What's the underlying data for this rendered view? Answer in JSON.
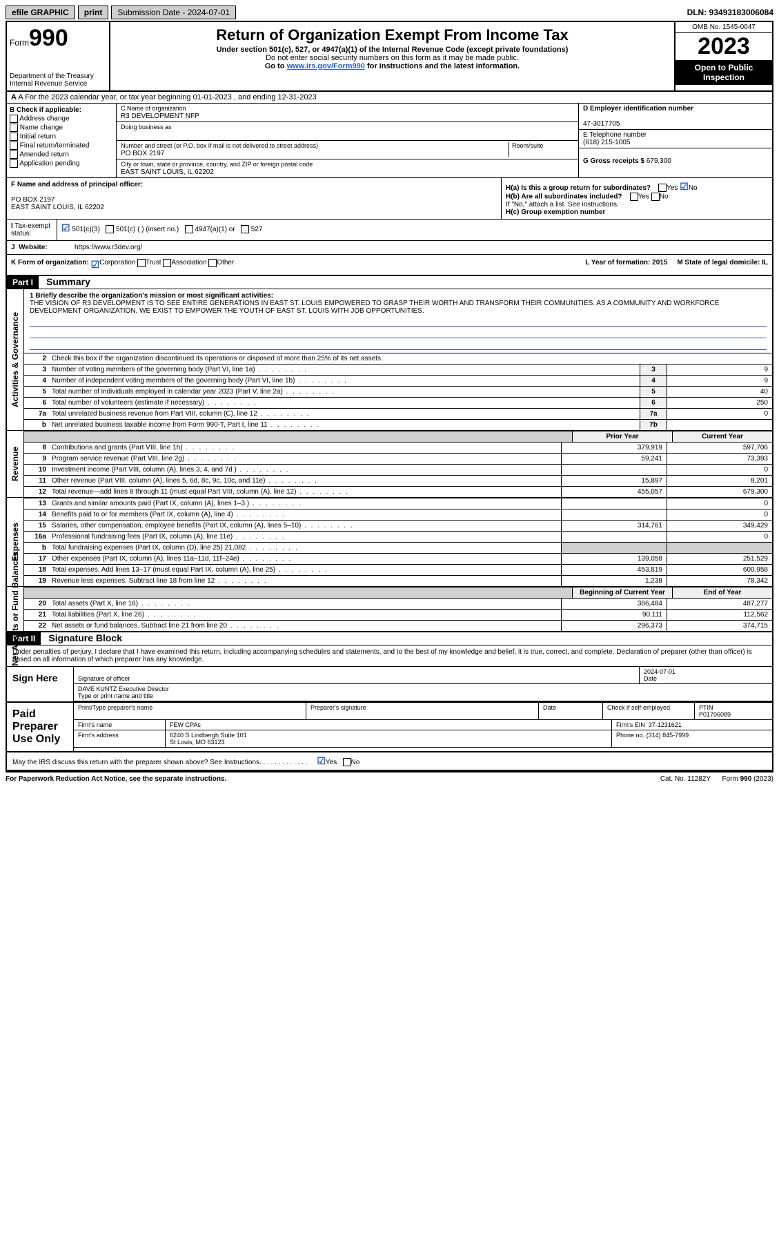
{
  "topbar": {
    "efile": "efile GRAPHIC",
    "print": "print",
    "submission": "Submission Date - 2024-07-01",
    "dln": "DLN: 93493183006084"
  },
  "header": {
    "form_label": "Form",
    "form_num": "990",
    "dept": "Department of the Treasury",
    "irs": "Internal Revenue Service",
    "title": "Return of Organization Exempt From Income Tax",
    "sub1": "Under section 501(c), 527, or 4947(a)(1) of the Internal Revenue Code (except private foundations)",
    "sub2": "Do not enter social security numbers on this form as it may be made public.",
    "sub3": "Go to ",
    "sub3_link": "www.irs.gov/Form990",
    "sub3_after": " for instructions and the latest information.",
    "omb": "OMB No. 1545-0047",
    "year": "2023",
    "open": "Open to Public Inspection"
  },
  "rowA": "A For the 2023 calendar year, or tax year beginning 01-01-2023   , and ending 12-31-2023",
  "colB": {
    "title": "B Check if applicable:",
    "opts": [
      "Address change",
      "Name change",
      "Initial return",
      "Final return/terminated",
      "Amended return",
      "Application pending"
    ]
  },
  "colC": {
    "name_lbl": "C Name of organization",
    "name": "R3 DEVELOPMENT NFP",
    "dba_lbl": "Doing business as",
    "addr_lbl": "Number and street (or P.O. box if mail is not delivered to street address)",
    "room_lbl": "Room/suite",
    "addr": "PO BOX 2197",
    "city_lbl": "City or town, state or province, country, and ZIP or foreign postal code",
    "city": "EAST SAINT LOUIS, IL  62202"
  },
  "colD": {
    "ein_lbl": "D Employer identification number",
    "ein": "47-3017705",
    "tel_lbl": "E Telephone number",
    "tel": "(618) 215-1005",
    "gross_lbl": "G Gross receipts $",
    "gross": "679,300"
  },
  "rowF": {
    "lbl": "F  Name and address of principal officer:",
    "addr1": "PO BOX 2197",
    "addr2": "EAST SAINT LOUIS, IL  62202"
  },
  "rowH": {
    "ha": "H(a)  Is this a group return for subordinates?",
    "hb": "H(b)  Are all subordinates included?",
    "hb_note": "If \"No,\" attach a list. See instructions.",
    "hc": "H(c)  Group exemption number ",
    "yes": "Yes",
    "no": "No"
  },
  "rowI": {
    "lbl": "Tax-exempt status:",
    "o1": "501(c)(3)",
    "o2": "501(c) (  ) (insert no.)",
    "o3": "4947(a)(1) or",
    "o4": "527"
  },
  "rowJ": {
    "lbl": "Website:",
    "url": "https://www.r3dev.org/"
  },
  "rowK": {
    "lbl": "K Form of organization:",
    "o1": "Corporation",
    "o2": "Trust",
    "o3": "Association",
    "o4": "Other",
    "l": "L Year of formation: 2015",
    "m": "M State of legal domicile: IL"
  },
  "part1": {
    "hdr": "Part I",
    "title": "Summary",
    "q1": "1  Briefly describe the organization's mission or most significant activities:",
    "mission": "THE VISION OF R3 DEVELOPMENT IS TO SEE ENTIRE GENERATIONS IN EAST ST. LOUIS EMPOWERED TO GRASP THEIR WORTH AND TRANSFORM THEIR COMMUNITIES. AS A COMMUNITY AND WORKFORCE DEVELOPMENT ORGANIZATION, WE EXIST TO EMPOWER THE YOUTH OF EAST ST. LOUIS WITH JOB OPPORTUNITIES.",
    "q2": "Check this box       if the organization discontinued its operations or disposed of more than 25% of its net assets.",
    "vside_gov": "Activities & Governance",
    "vside_rev": "Revenue",
    "vside_exp": "Expenses",
    "vside_net": "Net Assets or Fund Balances",
    "prior": "Prior Year",
    "current": "Current Year",
    "beg": "Beginning of Current Year",
    "end": "End of Year",
    "lines_gov": [
      {
        "n": "3",
        "t": "Number of voting members of the governing body (Part VI, line 1a)",
        "box": "3",
        "v": "9"
      },
      {
        "n": "4",
        "t": "Number of independent voting members of the governing body (Part VI, line 1b)",
        "box": "4",
        "v": "9"
      },
      {
        "n": "5",
        "t": "Total number of individuals employed in calendar year 2023 (Part V, line 2a)",
        "box": "5",
        "v": "40"
      },
      {
        "n": "6",
        "t": "Total number of volunteers (estimate if necessary)",
        "box": "6",
        "v": "250"
      },
      {
        "n": "7a",
        "t": "Total unrelated business revenue from Part VIII, column (C), line 12",
        "box": "7a",
        "v": "0"
      },
      {
        "n": "b",
        "t": "Net unrelated business taxable income from Form 990-T, Part I, line 11",
        "box": "7b",
        "v": ""
      }
    ],
    "lines_rev": [
      {
        "n": "8",
        "t": "Contributions and grants (Part VIII, line 1h)",
        "p": "379,919",
        "c": "597,706"
      },
      {
        "n": "9",
        "t": "Program service revenue (Part VIII, line 2g)",
        "p": "59,241",
        "c": "73,393"
      },
      {
        "n": "10",
        "t": "Investment income (Part VIII, column (A), lines 3, 4, and 7d )",
        "p": "",
        "c": "0"
      },
      {
        "n": "11",
        "t": "Other revenue (Part VIII, column (A), lines 5, 6d, 8c, 9c, 10c, and 11e)",
        "p": "15,897",
        "c": "8,201"
      },
      {
        "n": "12",
        "t": "Total revenue—add lines 8 through 11 (must equal Part VIII, column (A), line 12)",
        "p": "455,057",
        "c": "679,300"
      }
    ],
    "lines_exp": [
      {
        "n": "13",
        "t": "Grants and similar amounts paid (Part IX, column (A), lines 1–3 )",
        "p": "",
        "c": "0"
      },
      {
        "n": "14",
        "t": "Benefits paid to or for members (Part IX, column (A), line 4)",
        "p": "",
        "c": "0"
      },
      {
        "n": "15",
        "t": "Salaries, other compensation, employee benefits (Part IX, column (A), lines 5–10)",
        "p": "314,761",
        "c": "349,429"
      },
      {
        "n": "16a",
        "t": "Professional fundraising fees (Part IX, column (A), line 11e)",
        "p": "",
        "c": "0"
      },
      {
        "n": "b",
        "t": "Total fundraising expenses (Part IX, column (D), line 25) 21,082",
        "p": "—",
        "c": "—"
      },
      {
        "n": "17",
        "t": "Other expenses (Part IX, column (A), lines 11a–11d, 11f–24e)",
        "p": "139,058",
        "c": "251,529"
      },
      {
        "n": "18",
        "t": "Total expenses. Add lines 13–17 (must equal Part IX, column (A), line 25)",
        "p": "453,819",
        "c": "600,958"
      },
      {
        "n": "19",
        "t": "Revenue less expenses. Subtract line 18 from line 12",
        "p": "1,238",
        "c": "78,342"
      }
    ],
    "lines_net": [
      {
        "n": "20",
        "t": "Total assets (Part X, line 16)",
        "p": "386,484",
        "c": "487,277"
      },
      {
        "n": "21",
        "t": "Total liabilities (Part X, line 26)",
        "p": "90,111",
        "c": "112,562"
      },
      {
        "n": "22",
        "t": "Net assets or fund balances. Subtract line 21 from line 20",
        "p": "296,373",
        "c": "374,715"
      }
    ]
  },
  "part2": {
    "hdr": "Part II",
    "title": "Signature Block",
    "intro": "Under penalties of perjury, I declare that I have examined this return, including accompanying schedules and statements, and to the best of my knowledge and belief, it is true, correct, and complete. Declaration of preparer (other than officer) is based on all information of which preparer has any knowledge.",
    "sign_here": "Sign Here",
    "sig_off_lbl": "Signature of officer",
    "date_lbl": "Date",
    "date": "2024-07-01",
    "officer": "DAVE KUNTZ Executive Director",
    "type_lbl": "Type or print name and title",
    "paid": "Paid Preparer Use Only",
    "prep_name_lbl": "Print/Type preparer's name",
    "prep_sig_lbl": "Preparer's signature",
    "check_lbl": "Check        if self-employed",
    "ptin_lbl": "PTIN",
    "ptin": "P01706089",
    "firm_name_lbl": "Firm's name",
    "firm_name": "FEW CPAs",
    "firm_ein_lbl": "Firm's EIN",
    "firm_ein": "37-1231621",
    "firm_addr_lbl": "Firm's address",
    "firm_addr1": "6240 S Lindbergh Suite 101",
    "firm_addr2": "St Louis, MO  63123",
    "phone_lbl": "Phone no.",
    "phone": "(314) 845-7999",
    "discuss": "May the IRS discuss this return with the preparer shown above? See Instructions.",
    "yes": "Yes",
    "no": "No"
  },
  "footer": {
    "pra": "For Paperwork Reduction Act Notice, see the separate instructions.",
    "cat": "Cat. No. 11282Y",
    "form": "Form 990 (2023)"
  }
}
